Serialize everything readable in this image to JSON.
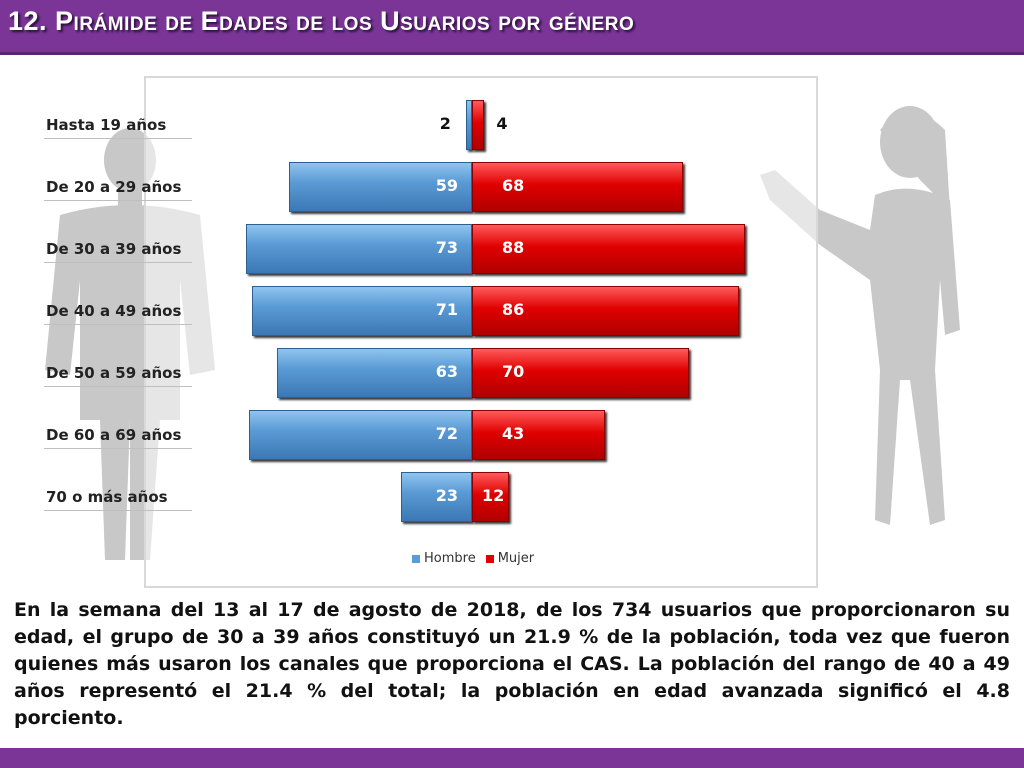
{
  "header": {
    "title": "12. Pirámide de Edades de los Usuarios por género"
  },
  "colors": {
    "hombre": "#5b9bd5",
    "mujer": "#e00000",
    "accent": "#7a3597"
  },
  "chart_data": {
    "type": "bar",
    "orientation": "horizontal-population-pyramid",
    "title": "",
    "categories": [
      "Hasta 19 años",
      "De 20 a 29 años",
      "De 30 a 39 años",
      "De 40 a 49 años",
      "De 50 a 59 años",
      "De 60 a 69 años",
      "70 o más años"
    ],
    "series": [
      {
        "name": "Hombre",
        "values": [
          2,
          59,
          73,
          71,
          63,
          72,
          23
        ]
      },
      {
        "name": "Mujer",
        "values": [
          4,
          68,
          88,
          86,
          70,
          43,
          12
        ]
      }
    ],
    "legend": "bottom-center",
    "grid": false
  },
  "legend": {
    "hombre": "Hombre",
    "mujer": "Mujer"
  },
  "body": {
    "paragraph": "En la semana del 13 al 17 de agosto de 2018, de los 734 usuarios que proporcionaron su edad, el grupo de 30 a 39 años constituyó un 21.9 % de la población, toda vez que fueron quienes más usaron los canales que proporciona el CAS. La población del rango de 40 a 49 años representó el 21.4 % del total; la población en edad avanzada significó el 4.8 porciento."
  }
}
